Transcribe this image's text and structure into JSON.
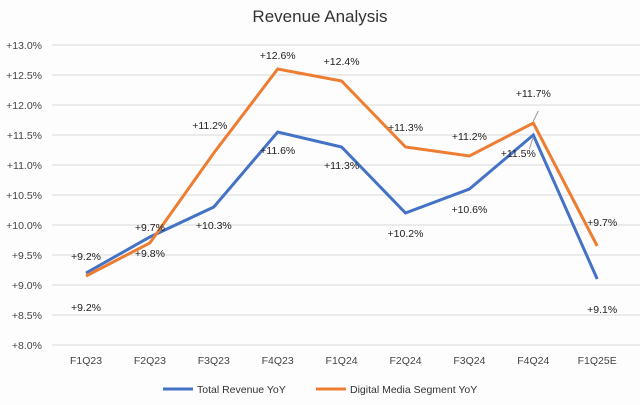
{
  "chart_data": {
    "type": "line",
    "title": "Revenue Analysis",
    "xlabel": "",
    "ylabel": "",
    "categories": [
      "F1Q23",
      "F2Q23",
      "F3Q23",
      "F4Q23",
      "F1Q24",
      "F2Q24",
      "F3Q24",
      "F4Q24",
      "F1Q25E"
    ],
    "ylim": [
      8.0,
      13.0
    ],
    "yticks": [
      8.0,
      8.5,
      9.0,
      9.5,
      10.0,
      10.5,
      11.0,
      11.5,
      12.0,
      12.5,
      13.0
    ],
    "ytick_labels": [
      "+8.0%",
      "+8.5%",
      "+9.0%",
      "+9.5%",
      "+10.0%",
      "+10.5%",
      "+11.0%",
      "+11.5%",
      "+12.0%",
      "+12.5%",
      "+13.0%"
    ],
    "grid": true,
    "legend_position": "bottom",
    "series": [
      {
        "name": "Total Revenue YoY",
        "color": "#4472c4",
        "values": [
          9.2,
          9.8,
          10.3,
          11.55,
          11.3,
          10.2,
          10.6,
          11.5,
          9.1
        ],
        "labels": [
          "+9.2%",
          "+9.8%",
          "+10.3%",
          "+11.6%",
          "+11.3%",
          "+10.2%",
          "+10.6%",
          "+11.5%",
          "+9.1%"
        ]
      },
      {
        "name": "Digital Media Segment YoY",
        "color": "#ed7d31",
        "values": [
          9.15,
          9.7,
          11.2,
          12.6,
          12.4,
          11.3,
          11.15,
          11.7,
          9.65
        ],
        "labels": [
          "+9.2%",
          "+9.7%",
          "+11.2%",
          "+12.6%",
          "+12.4%",
          "+11.3%",
          "+11.2%",
          "+11.7%",
          "+9.7%"
        ]
      }
    ]
  }
}
